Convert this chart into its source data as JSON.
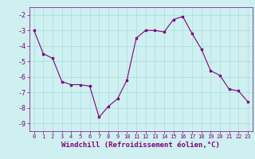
{
  "x": [
    0,
    1,
    2,
    3,
    4,
    5,
    6,
    7,
    8,
    9,
    10,
    11,
    12,
    13,
    14,
    15,
    16,
    17,
    18,
    19,
    20,
    21,
    22,
    23
  ],
  "y": [
    -3.0,
    -4.5,
    -4.8,
    -6.3,
    -6.5,
    -6.5,
    -6.6,
    -8.6,
    -7.9,
    -7.4,
    -6.2,
    -3.5,
    -3.0,
    -3.0,
    -3.1,
    -2.3,
    -2.1,
    -3.2,
    -4.2,
    -5.6,
    -5.9,
    -6.8,
    -6.9,
    -7.6
  ],
  "line_color": "#800080",
  "marker": "s",
  "markersize": 2,
  "linewidth": 0.8,
  "bg_color": "#cef0f0",
  "grid_color": "#aadddd",
  "tick_color": "#800080",
  "label_color": "#800080",
  "xlabel": "Windchill (Refroidissement éolien,°C)",
  "ylim": [
    -9.5,
    -1.5
  ],
  "xlim": [
    -0.5,
    23.5
  ],
  "yticks": [
    -9,
    -8,
    -7,
    -6,
    -5,
    -4,
    -3,
    -2
  ],
  "xticks": [
    0,
    1,
    2,
    3,
    4,
    5,
    6,
    7,
    8,
    9,
    10,
    11,
    12,
    13,
    14,
    15,
    16,
    17,
    18,
    19,
    20,
    21,
    22,
    23
  ],
  "xlabel_fontsize": 6.5,
  "tick_fontsize": 6
}
